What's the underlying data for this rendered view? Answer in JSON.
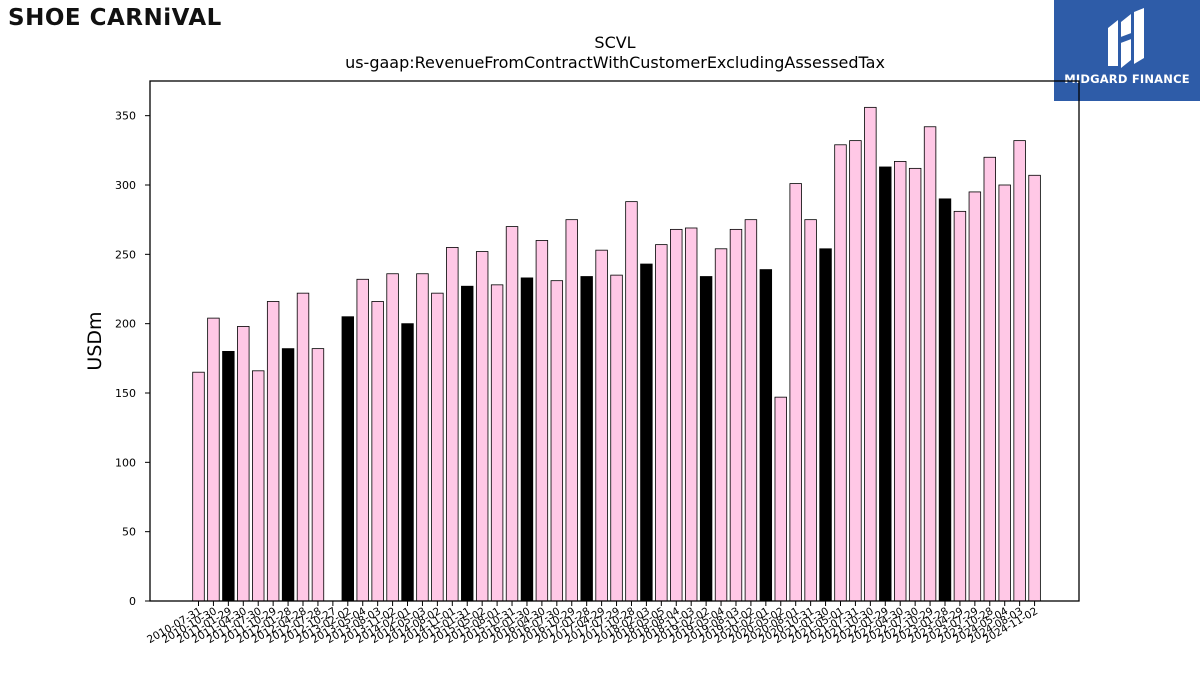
{
  "logos": {
    "brand": "SHOE CARNiVAL",
    "partner": "MIDGARD FINANCE"
  },
  "colors": {
    "bar_default": "#ffc8e6",
    "bar_highlight": "#000000",
    "partner_bg": "#2e5ca8"
  },
  "chart_data": {
    "type": "bar",
    "title": "SCVL",
    "subtitle": "us-gaap:RevenueFromContractWithCustomerExcludingAssessedTax",
    "xlabel": "",
    "ylabel": "USDm",
    "ylim": [
      0,
      375
    ],
    "yticks": [
      0,
      50,
      100,
      150,
      200,
      250,
      300,
      350
    ],
    "grid": false,
    "legend": "none",
    "categories": [
      "2010-07-31",
      "2010-10-30",
      "2011-01-29",
      "2011-04-30",
      "2011-07-30",
      "2011-10-29",
      "2012-01-28",
      "2012-04-28",
      "2012-07-28",
      "2012-10-27",
      "2013-02-02",
      "2013-05-04",
      "2013-08-03",
      "2013-11-02",
      "2014-02-01",
      "2014-05-03",
      "2014-08-02",
      "2014-11-01",
      "2015-01-31",
      "2015-05-02",
      "2015-08-01",
      "2015-10-31",
      "2016-01-30",
      "2016-04-30",
      "2016-07-30",
      "2016-10-29",
      "2017-01-28",
      "2017-04-29",
      "2017-07-29",
      "2017-10-28",
      "2018-02-03",
      "2018-05-05",
      "2018-08-04",
      "2018-11-03",
      "2019-02-02",
      "2019-05-04",
      "2019-08-03",
      "2019-11-02",
      "2020-02-01",
      "2020-05-02",
      "2020-08-01",
      "2020-10-31",
      "2021-01-30",
      "2021-05-01",
      "2021-07-31",
      "2021-10-30",
      "2022-01-29",
      "2022-04-30",
      "2022-07-30",
      "2022-10-29",
      "2023-01-28",
      "2023-04-29",
      "2023-07-29",
      "2023-10-28",
      "2024-05-04",
      "2024-08-03",
      "2024-11-02"
    ],
    "values": [
      165,
      204,
      180,
      198,
      166,
      216,
      182,
      222,
      182,
      0,
      205,
      232,
      216,
      236,
      200,
      236,
      222,
      255,
      227,
      252,
      228,
      270,
      233,
      260,
      231,
      275,
      234,
      253,
      235,
      288,
      243,
      257,
      268,
      269,
      234,
      254,
      268,
      275,
      239,
      147,
      301,
      275,
      254,
      329,
      332,
      356,
      313,
      317,
      312,
      342,
      290,
      281,
      295,
      320,
      300,
      332,
      307
    ],
    "highlighted_indices": [
      2,
      6,
      10,
      14,
      18,
      22,
      26,
      30,
      34,
      38,
      42,
      46,
      50
    ]
  }
}
